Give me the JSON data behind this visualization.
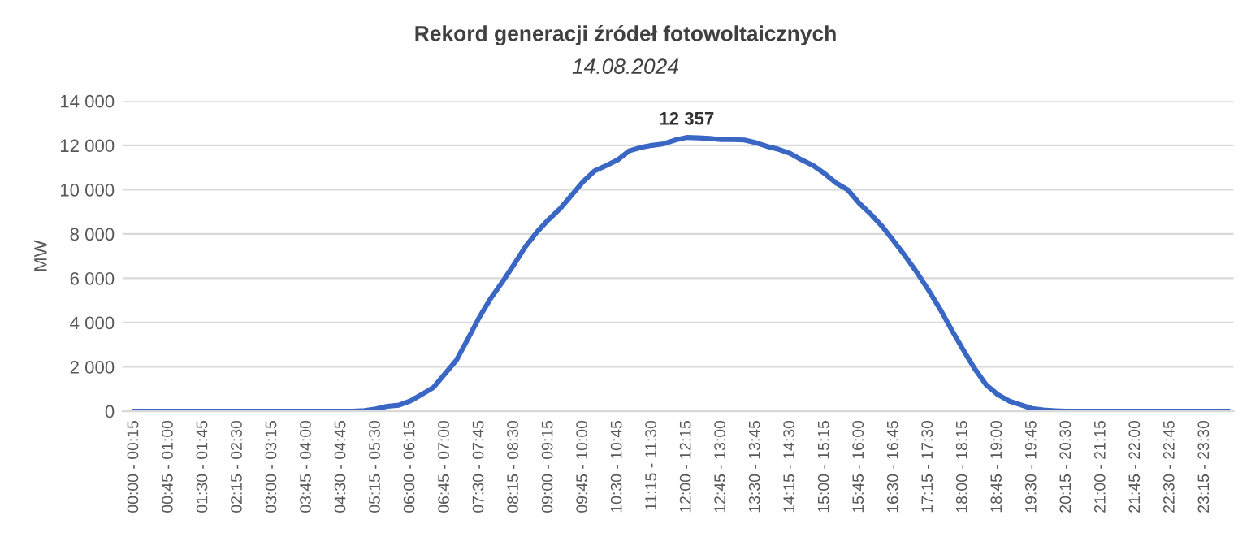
{
  "chart_data": {
    "type": "line",
    "title": "Rekord generacji źródeł fotowoltaicznych",
    "subtitle": "14.08.2024",
    "ylabel": "MW",
    "categories": [
      "00:00 - 00:15",
      null,
      null,
      "00:45 - 01:00",
      null,
      null,
      "01:30 - 01:45",
      null,
      null,
      "02:15 - 02:30",
      null,
      null,
      "03:00 - 03:15",
      null,
      null,
      "03:45 - 04:00",
      null,
      null,
      "04:30 - 04:45",
      null,
      null,
      "05:15 - 05:30",
      null,
      null,
      "06:00 - 06:15",
      null,
      null,
      "06:45 - 07:00",
      null,
      null,
      "07:30 - 07:45",
      null,
      null,
      "08:15 - 08:30",
      null,
      null,
      "09:00 - 09:15",
      null,
      null,
      "09:45 - 10:00",
      null,
      null,
      "10:30 - 10:45",
      null,
      null,
      "11:15 - 11:30",
      null,
      null,
      "12:00 - 12:15",
      null,
      null,
      "12:45 - 13:00",
      null,
      null,
      "13:30 - 13:45",
      null,
      null,
      "14:15 - 14:30",
      null,
      null,
      "15:00 - 15:15",
      null,
      null,
      "15:45 - 16:00",
      null,
      null,
      "16:30 - 16:45",
      null,
      null,
      "17:15 - 17:30",
      null,
      null,
      "18:00 - 18:15",
      null,
      null,
      "18:45 - 19:00",
      null,
      null,
      "19:30 - 19:45",
      null,
      null,
      "20:15 - 20:30",
      null,
      null,
      "21:00 - 21:15",
      null,
      null,
      "21:45 - 22:00",
      null,
      null,
      "22:30 - 22:45",
      null,
      null,
      "23:15 - 23:30",
      null,
      null
    ],
    "series": [
      {
        "color": "#3a66c4",
        "values": [
          0,
          0,
          0,
          0,
          0,
          0,
          0,
          0,
          0,
          0,
          0,
          0,
          0,
          0,
          0,
          0,
          0,
          0,
          0,
          0,
          30,
          100,
          220,
          270,
          460,
          760,
          1070,
          1690,
          2300,
          3270,
          4250,
          5110,
          5840,
          6620,
          7430,
          8090,
          8650,
          9140,
          9750,
          10360,
          10850,
          11090,
          11340,
          11750,
          11900,
          12000,
          12070,
          12240,
          12357,
          12340,
          12310,
          12260,
          12260,
          12240,
          12120,
          11950,
          11820,
          11630,
          11340,
          11090,
          10720,
          10290,
          9990,
          9380,
          8890,
          8330,
          7670,
          6990,
          6260,
          5470,
          4620,
          3690,
          2790,
          1930,
          1200,
          760,
          460,
          290,
          120,
          50,
          20,
          0,
          0,
          0,
          0,
          0,
          0,
          0,
          0,
          0,
          0,
          0,
          0,
          0,
          0,
          0
        ],
        "value_labels": [
          null,
          null,
          null,
          null,
          null,
          null,
          null,
          null,
          null,
          null,
          null,
          null,
          null,
          null,
          null,
          null,
          null,
          null,
          null,
          null,
          null,
          null,
          null,
          null,
          null,
          null,
          null,
          null,
          null,
          null,
          null,
          null,
          null,
          null,
          null,
          null,
          null,
          null,
          null,
          null,
          null,
          null,
          null,
          null,
          null,
          null,
          null,
          null,
          "12 357",
          null,
          null,
          null,
          null,
          null,
          null,
          null,
          null,
          null,
          null,
          null,
          null,
          null,
          null,
          null,
          null,
          null,
          null,
          null,
          null,
          null,
          null,
          null,
          null,
          null,
          null,
          null,
          null,
          null,
          null,
          null,
          null,
          null,
          null,
          null,
          null,
          null,
          null,
          null,
          null,
          null,
          null,
          null,
          null,
          null,
          null,
          null
        ]
      }
    ],
    "ylim": [
      0,
      14000
    ],
    "yticks": [
      {
        "value": 0,
        "label": "0"
      },
      {
        "value": 2000,
        "label": "2 000"
      },
      {
        "value": 4000,
        "label": "4 000"
      },
      {
        "value": 6000,
        "label": "6 000"
      },
      {
        "value": 8000,
        "label": "8 000"
      },
      {
        "value": 10000,
        "label": "10 000"
      },
      {
        "value": 12000,
        "label": "12 000"
      },
      {
        "value": 14000,
        "label": "14 000"
      }
    ],
    "grid": "y",
    "marker": "none",
    "line_style": "solid"
  }
}
